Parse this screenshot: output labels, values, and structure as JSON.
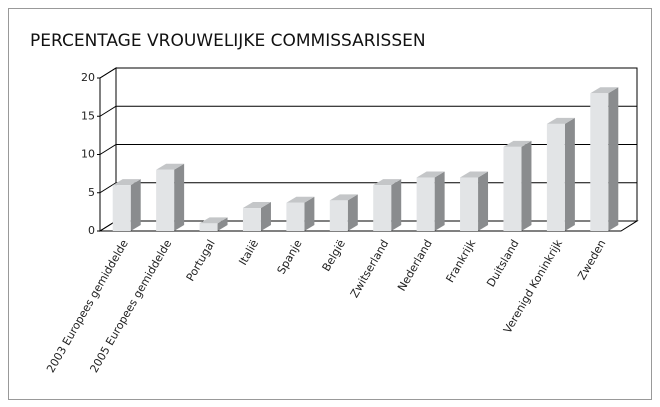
{
  "chart_data": {
    "type": "bar3d",
    "title": "PERCENTAGE VROUWELIJKE COMMISSARISSEN",
    "categories": [
      "2003 Europees gemiddelde",
      "2005 Europees gemiddelde",
      "Portugal",
      "Italië",
      "Spanje",
      "België",
      "Zwitserland",
      "Nederland",
      "Frankrijk",
      "Duitsland",
      "Verenigd Koninkrijk",
      "Zweden"
    ],
    "values": [
      6,
      8,
      1,
      3,
      3.7,
      4,
      6,
      7,
      7,
      11,
      14,
      18
    ],
    "color": "#e2e4e6",
    "ylim": [
      0,
      20
    ],
    "yticks": [
      0,
      5,
      10,
      15,
      20
    ],
    "grid": true
  }
}
